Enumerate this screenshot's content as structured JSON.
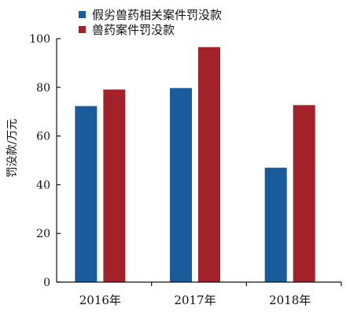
{
  "chart_data": {
    "type": "bar",
    "title": "",
    "xlabel": "",
    "ylabel": "罚没款/万元",
    "ylim": [
      0,
      100
    ],
    "yticks": [
      0,
      20,
      40,
      60,
      80,
      100
    ],
    "grid": false,
    "legend_position": "top",
    "categories": [
      "2016年",
      "2017年",
      "2018年"
    ],
    "series": [
      {
        "name": "假劣兽药相关案件罚没款",
        "color": "#1a5b9c",
        "values": [
          72.3,
          79.7,
          47.0
        ]
      },
      {
        "name": "兽药案件罚没款",
        "color": "#a3222a",
        "values": [
          79.1,
          96.5,
          72.7
        ]
      }
    ]
  }
}
